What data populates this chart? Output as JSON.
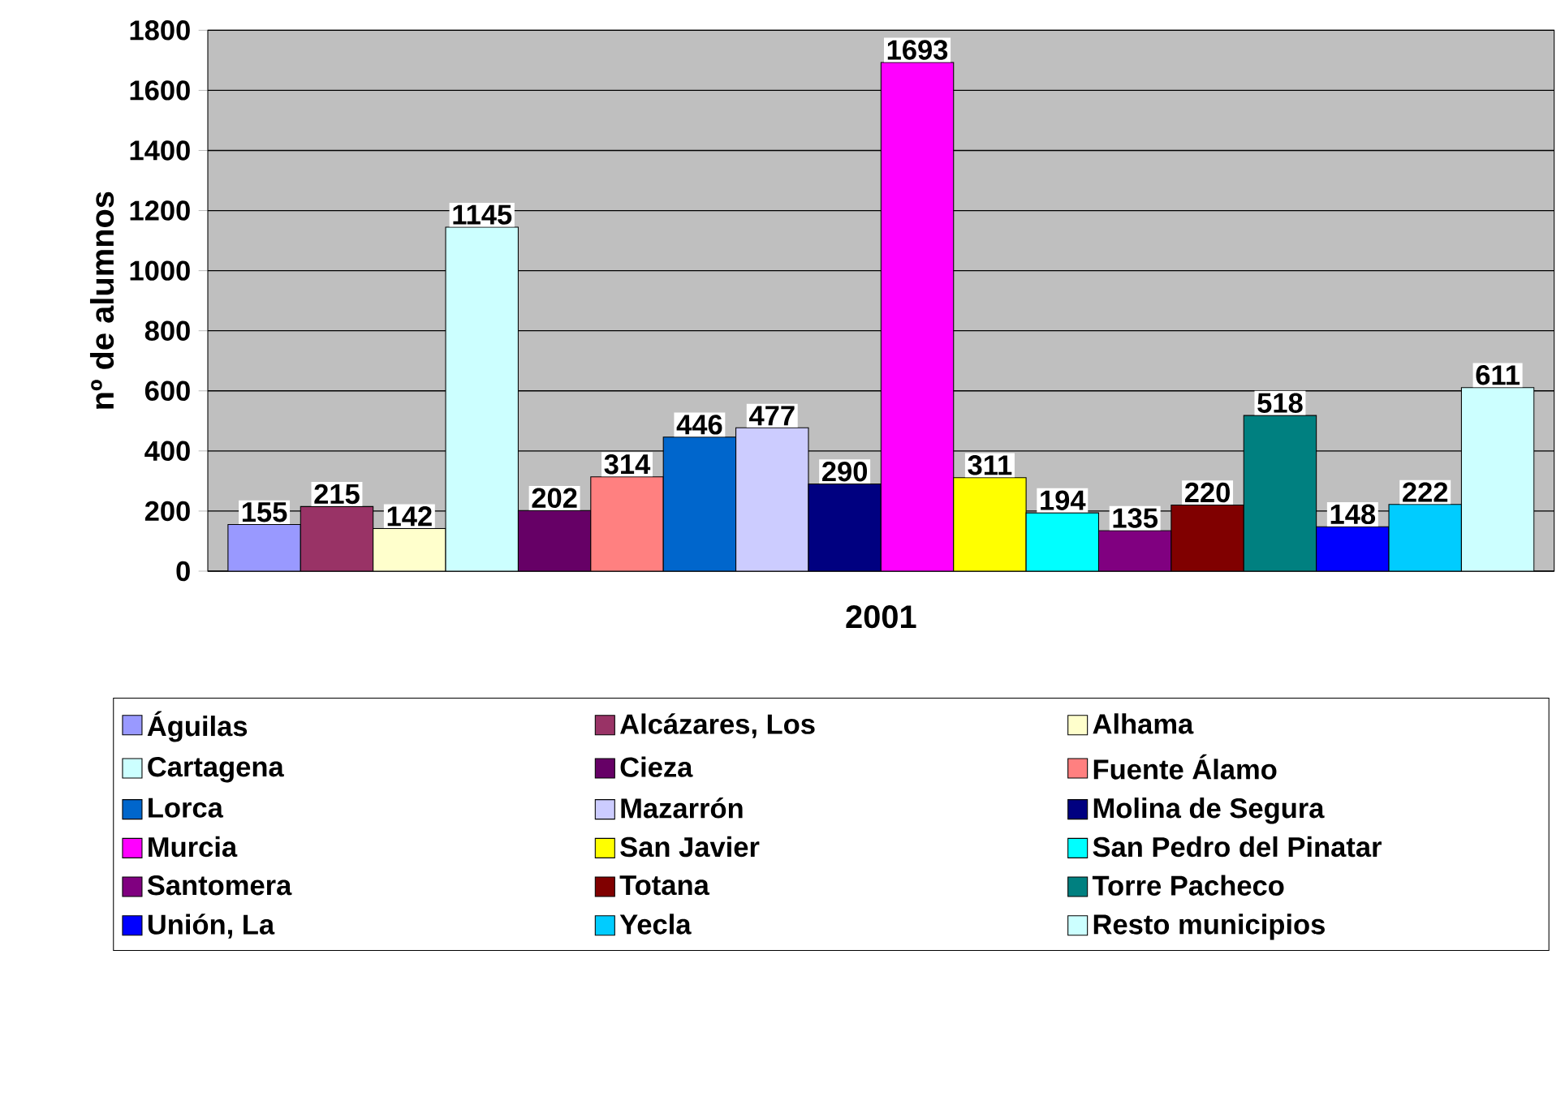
{
  "chart_data": {
    "type": "bar",
    "categories": [
      "2001"
    ],
    "ylabel": "nº de alumnos",
    "ylim": [
      0,
      1800
    ],
    "yticks": [
      0,
      200,
      400,
      600,
      800,
      1000,
      1200,
      1400,
      1600,
      1800
    ],
    "grid": "y",
    "legend": "bottom",
    "data_labels": true,
    "series": [
      {
        "name": "Águilas",
        "color": "#9999ff",
        "values": [
          155
        ]
      },
      {
        "name": "Alcázares, Los",
        "color": "#993366",
        "values": [
          215
        ]
      },
      {
        "name": "Alhama",
        "color": "#ffffcc",
        "values": [
          142
        ]
      },
      {
        "name": "Cartagena",
        "color": "#ccffff",
        "values": [
          1145
        ]
      },
      {
        "name": "Cieza",
        "color": "#660066",
        "values": [
          202
        ]
      },
      {
        "name": "Fuente Álamo",
        "color": "#ff8080",
        "values": [
          314
        ]
      },
      {
        "name": "Lorca",
        "color": "#0066cc",
        "values": [
          446
        ]
      },
      {
        "name": "Mazarrón",
        "color": "#ccccff",
        "values": [
          477
        ]
      },
      {
        "name": "Molina de Segura",
        "color": "#000080",
        "values": [
          290
        ]
      },
      {
        "name": "Murcia",
        "color": "#ff00ff",
        "values": [
          1693
        ]
      },
      {
        "name": "San Javier",
        "color": "#ffff00",
        "values": [
          311
        ]
      },
      {
        "name": "San Pedro del Pinatar",
        "color": "#00ffff",
        "values": [
          194
        ]
      },
      {
        "name": "Santomera",
        "color": "#800080",
        "values": [
          135
        ]
      },
      {
        "name": "Totana",
        "color": "#800000",
        "values": [
          220
        ]
      },
      {
        "name": "Torre Pacheco",
        "color": "#008080",
        "values": [
          518
        ]
      },
      {
        "name": "Unión, La",
        "color": "#0000ff",
        "values": [
          148
        ]
      },
      {
        "name": "Yecla",
        "color": "#00ccff",
        "values": [
          222
        ]
      },
      {
        "name": "Resto municipios",
        "color": "#ccffff",
        "values": [
          611
        ]
      }
    ]
  }
}
